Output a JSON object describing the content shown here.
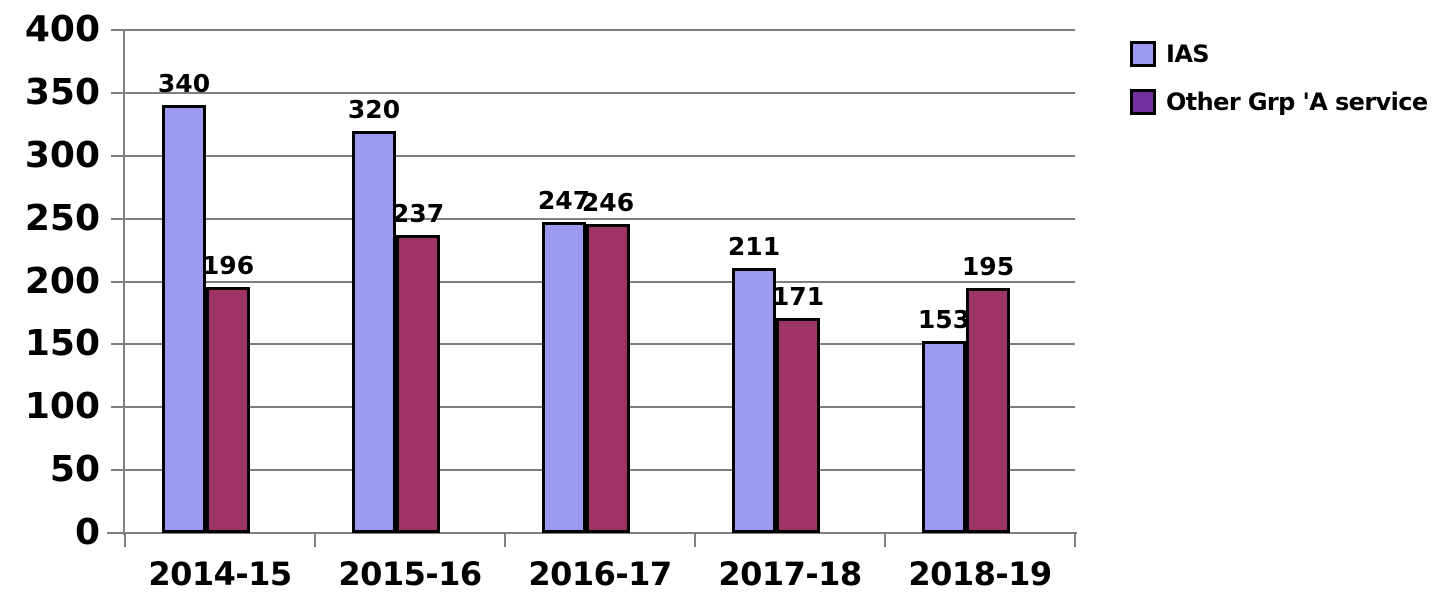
{
  "chart_data": {
    "type": "bar",
    "title": "",
    "xlabel": "",
    "ylabel": "",
    "categories": [
      "2014-15",
      "2015-16",
      "2016-17",
      "2017-18",
      "2018-19"
    ],
    "series": [
      {
        "name": "IAS",
        "values": [
          340,
          320,
          247,
          211,
          153
        ],
        "color": "#9a9af0",
        "border_color": "#000000"
      },
      {
        "name": "Other Grp 'A service",
        "values": [
          196,
          237,
          246,
          171,
          195
        ],
        "color": "#9e3366",
        "border_color": "#000000"
      }
    ],
    "legend": [
      {
        "label": "IAS",
        "marker_color": "#9a9af0"
      },
      {
        "label": "Other Grp 'A service",
        "marker_color": "#7030a0"
      }
    ],
    "yticks": [
      0,
      50,
      100,
      150,
      200,
      250,
      300,
      350,
      400
    ],
    "ylim": [
      0,
      400
    ],
    "grid": "horizontal-only",
    "legend_position": "right",
    "data_labels_shown": true,
    "colors": {
      "gridline": "#7f7f7f",
      "axis": "#7f7f7f",
      "text": "#000000",
      "background": "#ffffff"
    }
  }
}
